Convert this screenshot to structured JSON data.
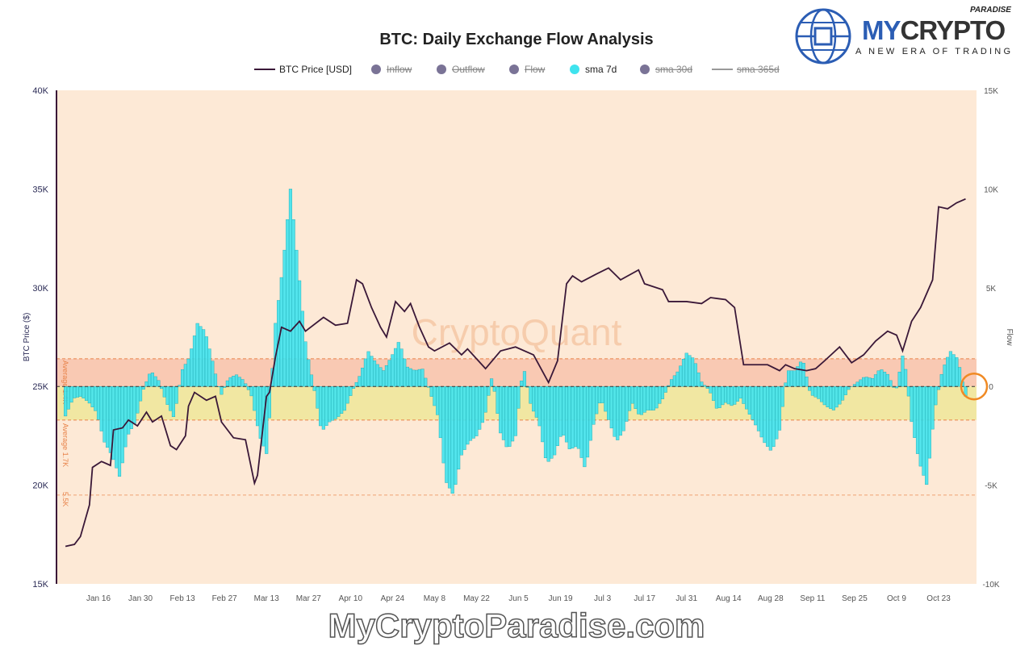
{
  "logo": {
    "paradise": "PARADISE",
    "my": "MY",
    "crypto": "CRYPTO",
    "tagline": "A NEW ERA OF TRADING"
  },
  "footer": "MyCryptoParadise.com",
  "colors": {
    "bg": "#fde9d6",
    "price": "#3a1838",
    "bar": "#3fe3ee",
    "bar_edge": "#1aa7b0",
    "band_up": "#f9c9b3",
    "band_down": "#f1e7a2",
    "avg": "#e8834a",
    "highlight": "#f08a24"
  },
  "chart_data": {
    "type": "bar+line",
    "title": "BTC: Daily Exchange Flow Analysis",
    "watermark": "CryptoQuant",
    "legend": [
      {
        "label": "BTC Price [USD]",
        "active": true,
        "marker": "line"
      },
      {
        "label": "Inflow",
        "active": false,
        "marker": "dot"
      },
      {
        "label": "Outflow",
        "active": false,
        "marker": "dot"
      },
      {
        "label": "Flow",
        "active": false,
        "marker": "dot"
      },
      {
        "label": "sma 7d",
        "active": true,
        "marker": "dot"
      },
      {
        "label": "sma 30d",
        "active": false,
        "marker": "dot"
      },
      {
        "label": "sma 365d",
        "active": false,
        "marker": "line"
      }
    ],
    "legend_position": "top-center",
    "ylabel_left": "BTC Price ($)",
    "ylabel_right": "Flow",
    "y_left": {
      "range": [
        15000,
        40000
      ],
      "ticks": [
        "15K",
        "20K",
        "25K",
        "30K",
        "35K",
        "40K"
      ]
    },
    "y_right": {
      "range": [
        -10000,
        15000
      ],
      "ticks": [
        "-10K",
        "-5K",
        "0",
        "5K",
        "10K",
        "15K"
      ]
    },
    "x_ticks": [
      {
        "label": "Jan 16",
        "day": 15
      },
      {
        "label": "Jan 30",
        "day": 29
      },
      {
        "label": "Feb 13",
        "day": 43
      },
      {
        "label": "Feb 27",
        "day": 57
      },
      {
        "label": "Mar 13",
        "day": 71
      },
      {
        "label": "Mar 27",
        "day": 85
      },
      {
        "label": "Apr 10",
        "day": 99
      },
      {
        "label": "Apr 24",
        "day": 113
      },
      {
        "label": "May 8",
        "day": 127
      },
      {
        "label": "May 22",
        "day": 141
      },
      {
        "label": "Jun 5",
        "day": 155
      },
      {
        "label": "Jun 19",
        "day": 169
      },
      {
        "label": "Jul 3",
        "day": 183
      },
      {
        "label": "Jul 17",
        "day": 197
      },
      {
        "label": "Jul 31",
        "day": 211
      },
      {
        "label": "Aug 14",
        "day": 225
      },
      {
        "label": "Aug 28",
        "day": 239
      },
      {
        "label": "Sep 11",
        "day": 253
      },
      {
        "label": "Sep 25",
        "day": 267
      },
      {
        "label": "Oct 9",
        "day": 281
      },
      {
        "label": "Oct 23",
        "day": 295
      }
    ],
    "x_range_days": [
      -1,
      309
    ],
    "bands": [
      {
        "label": "Average 1.4K",
        "from": 0,
        "to": 1400
      },
      {
        "label": "Average 1.7K",
        "from": -1700,
        "to": 0
      }
    ],
    "threshold": {
      "label": "5.5K",
      "value": -5500
    },
    "price": [
      [
        4,
        16900
      ],
      [
        7,
        17000
      ],
      [
        9,
        17400
      ],
      [
        12,
        19000
      ],
      [
        13,
        20900
      ],
      [
        16,
        21200
      ],
      [
        19,
        21000
      ],
      [
        20,
        22800
      ],
      [
        23,
        22900
      ],
      [
        25,
        23300
      ],
      [
        28,
        23000
      ],
      [
        31,
        23700
      ],
      [
        33,
        23200
      ],
      [
        36,
        23500
      ],
      [
        39,
        22000
      ],
      [
        41,
        21800
      ],
      [
        44,
        22500
      ],
      [
        45,
        24000
      ],
      [
        47,
        24700
      ],
      [
        51,
        24300
      ],
      [
        54,
        24500
      ],
      [
        56,
        23200
      ],
      [
        60,
        22400
      ],
      [
        64,
        22300
      ],
      [
        67,
        20100
      ],
      [
        68,
        20500
      ],
      [
        71,
        24500
      ],
      [
        72,
        24700
      ],
      [
        74,
        26500
      ],
      [
        76,
        28000
      ],
      [
        79,
        27800
      ],
      [
        82,
        28300
      ],
      [
        84,
        27800
      ],
      [
        90,
        28500
      ],
      [
        94,
        28100
      ],
      [
        98,
        28200
      ],
      [
        101,
        30400
      ],
      [
        103,
        30200
      ],
      [
        106,
        29000
      ],
      [
        109,
        28000
      ],
      [
        111,
        27500
      ],
      [
        114,
        29300
      ],
      [
        117,
        28800
      ],
      [
        119,
        29200
      ],
      [
        122,
        28000
      ],
      [
        125,
        27000
      ],
      [
        127,
        26800
      ],
      [
        132,
        27200
      ],
      [
        136,
        26600
      ],
      [
        138,
        26900
      ],
      [
        144,
        25900
      ],
      [
        149,
        26800
      ],
      [
        154,
        27000
      ],
      [
        160,
        26600
      ],
      [
        165,
        25200
      ],
      [
        168,
        26300
      ],
      [
        171,
        30200
      ],
      [
        173,
        30600
      ],
      [
        176,
        30300
      ],
      [
        181,
        30700
      ],
      [
        185,
        31000
      ],
      [
        189,
        30400
      ],
      [
        195,
        30900
      ],
      [
        197,
        30200
      ],
      [
        203,
        29900
      ],
      [
        205,
        29300
      ],
      [
        211,
        29300
      ],
      [
        216,
        29200
      ],
      [
        219,
        29500
      ],
      [
        224,
        29400
      ],
      [
        227,
        29000
      ],
      [
        230,
        26100
      ],
      [
        234,
        26100
      ],
      [
        238,
        26100
      ],
      [
        242,
        25800
      ],
      [
        244,
        26100
      ],
      [
        247,
        25900
      ],
      [
        251,
        25800
      ],
      [
        254,
        25900
      ],
      [
        257,
        26300
      ],
      [
        262,
        27000
      ],
      [
        266,
        26200
      ],
      [
        270,
        26600
      ],
      [
        274,
        27300
      ],
      [
        278,
        27800
      ],
      [
        281,
        27600
      ],
      [
        283,
        26800
      ],
      [
        286,
        28300
      ],
      [
        289,
        29000
      ],
      [
        293,
        30400
      ],
      [
        295,
        34100
      ],
      [
        298,
        34000
      ],
      [
        301,
        34300
      ],
      [
        304,
        34500
      ]
    ],
    "sma7d_flow": {
      "start_day": 4,
      "end_day": 304,
      "values_k": [
        -1.5,
        -0.6,
        -0.5,
        -0.8,
        -1.3,
        -2.8,
        -3.5,
        -4.6,
        -2.5,
        -1.8,
        -0.2,
        0.8,
        0.3,
        -0.8,
        -1.6,
        0.8,
        1.5,
        3.2,
        2.8,
        1.2,
        -0.5,
        0.4,
        0.6,
        0.3,
        -0.5,
        -2.5,
        -3.5,
        3,
        6,
        10,
        6,
        2,
        0,
        -2.3,
        -1.8,
        -1.6,
        -1.2,
        -0.2,
        0.6,
        1.8,
        1.2,
        0.8,
        1.5,
        2.3,
        1,
        0.8,
        0.9,
        -0.3,
        -1.5,
        -4.8,
        -5.5,
        -3.5,
        -2.8,
        -2.5,
        -1.6,
        0.6,
        -2.3,
        -3.2,
        -2.5,
        1.1,
        -1,
        -1.8,
        -3.9,
        -3.5,
        -2.3,
        -3.2,
        -3,
        -4.2,
        -2,
        -0.6,
        -1.7,
        -2.8,
        -2.2,
        -0.8,
        -1.5,
        -1.2,
        -1.2,
        -0.6,
        0.3,
        0.8,
        1.7,
        1.4,
        0.2,
        -0.2,
        -1.2,
        -0.8,
        -1,
        -0.6,
        -1.3,
        -2,
        -2.8,
        -3.3,
        -2.3,
        0.8,
        0.8,
        1.4,
        -0.4,
        -0.6,
        -1,
        -1.2,
        -0.8,
        -0.1,
        0.2,
        0.5,
        0.4,
        0.9,
        0.6,
        -0.3,
        1.8,
        -1.7,
        -3.8,
        -5,
        -1.2,
        0.8,
        1.8,
        1.4,
        -0.5
      ]
    }
  }
}
